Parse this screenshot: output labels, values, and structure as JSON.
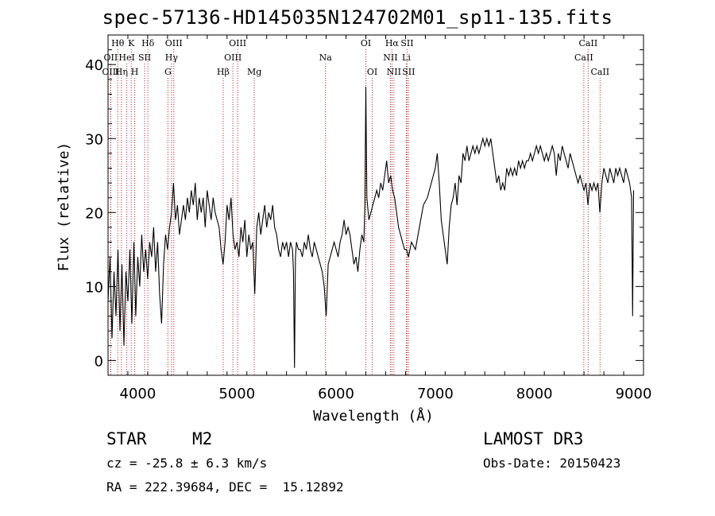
{
  "title": "spec-57136-HD145035N124702M01_sp11-135.fits",
  "footer": {
    "class_label": "STAR",
    "subclass": "M2",
    "survey": "LAMOST DR3",
    "cz": "cz = -25.8 ± 6.3 km/s",
    "obs_date": "Obs-Date: 20150423",
    "radec": "RA = 222.39684, DEC =  15.12892"
  },
  "chart_data": {
    "type": "line",
    "title": "spec-57136-HD145035N124702M01_sp11-135.fits",
    "xlabel": "Wavelength (Å)",
    "ylabel": "Flux (relative)",
    "xlim": [
      3700,
      9100
    ],
    "ylim": [
      -2,
      44
    ],
    "xticks": [
      4000,
      5000,
      6000,
      7000,
      8000,
      9000
    ],
    "yticks": [
      0,
      10,
      20,
      30,
      40
    ],
    "grid": false,
    "line_color": "#000000",
    "marker_color": "#b22222",
    "series": [
      {
        "values": [
          [
            3700,
            8
          ],
          [
            3720,
            14
          ],
          [
            3740,
            3
          ],
          [
            3760,
            12
          ],
          [
            3780,
            6
          ],
          [
            3800,
            15
          ],
          [
            3820,
            4
          ],
          [
            3840,
            13
          ],
          [
            3860,
            2
          ],
          [
            3880,
            12
          ],
          [
            3900,
            8
          ],
          [
            3920,
            15
          ],
          [
            3940,
            5
          ],
          [
            3960,
            16
          ],
          [
            3980,
            6
          ],
          [
            4000,
            14
          ],
          [
            4020,
            10
          ],
          [
            4040,
            17
          ],
          [
            4060,
            12
          ],
          [
            4080,
            15
          ],
          [
            4100,
            11
          ],
          [
            4120,
            16
          ],
          [
            4140,
            14
          ],
          [
            4160,
            18
          ],
          [
            4180,
            12
          ],
          [
            4200,
            16
          ],
          [
            4220,
            9
          ],
          [
            4240,
            5
          ],
          [
            4260,
            13
          ],
          [
            4280,
            17
          ],
          [
            4300,
            15
          ],
          [
            4320,
            18
          ],
          [
            4340,
            20
          ],
          [
            4360,
            24
          ],
          [
            4380,
            19
          ],
          [
            4400,
            21
          ],
          [
            4420,
            17
          ],
          [
            4440,
            19
          ],
          [
            4460,
            21
          ],
          [
            4480,
            19
          ],
          [
            4500,
            22
          ],
          [
            4520,
            20
          ],
          [
            4540,
            23
          ],
          [
            4560,
            21
          ],
          [
            4580,
            24
          ],
          [
            4600,
            19
          ],
          [
            4620,
            22
          ],
          [
            4640,
            20
          ],
          [
            4660,
            22
          ],
          [
            4680,
            18
          ],
          [
            4700,
            23
          ],
          [
            4720,
            21
          ],
          [
            4740,
            19
          ],
          [
            4760,
            22
          ],
          [
            4780,
            20
          ],
          [
            4800,
            19
          ],
          [
            4820,
            18
          ],
          [
            4840,
            15
          ],
          [
            4860,
            13
          ],
          [
            4880,
            16
          ],
          [
            4900,
            21
          ],
          [
            4920,
            19
          ],
          [
            4940,
            22
          ],
          [
            4960,
            17
          ],
          [
            4980,
            15
          ],
          [
            5000,
            16
          ],
          [
            5020,
            14
          ],
          [
            5040,
            18
          ],
          [
            5060,
            16
          ],
          [
            5080,
            19
          ],
          [
            5100,
            14
          ],
          [
            5120,
            17
          ],
          [
            5140,
            15
          ],
          [
            5160,
            16
          ],
          [
            5180,
            9
          ],
          [
            5200,
            18
          ],
          [
            5220,
            20
          ],
          [
            5240,
            17
          ],
          [
            5260,
            19
          ],
          [
            5280,
            21
          ],
          [
            5300,
            18
          ],
          [
            5320,
            20
          ],
          [
            5340,
            19
          ],
          [
            5360,
            21
          ],
          [
            5380,
            18
          ],
          [
            5400,
            17
          ],
          [
            5420,
            15
          ],
          [
            5440,
            14
          ],
          [
            5460,
            16
          ],
          [
            5480,
            15
          ],
          [
            5500,
            16
          ],
          [
            5520,
            14
          ],
          [
            5540,
            16
          ],
          [
            5560,
            15
          ],
          [
            5570,
            12
          ],
          [
            5580,
            -1
          ],
          [
            5590,
            14
          ],
          [
            5600,
            16
          ],
          [
            5620,
            15
          ],
          [
            5640,
            15
          ],
          [
            5660,
            14
          ],
          [
            5680,
            16
          ],
          [
            5700,
            15
          ],
          [
            5720,
            17
          ],
          [
            5740,
            15
          ],
          [
            5760,
            14
          ],
          [
            5780,
            16
          ],
          [
            5800,
            15
          ],
          [
            5820,
            14
          ],
          [
            5840,
            13
          ],
          [
            5860,
            12
          ],
          [
            5880,
            10
          ],
          [
            5900,
            6
          ],
          [
            5920,
            13
          ],
          [
            5940,
            14
          ],
          [
            5960,
            15
          ],
          [
            5980,
            16
          ],
          [
            6000,
            15
          ],
          [
            6020,
            14
          ],
          [
            6040,
            16
          ],
          [
            6060,
            17
          ],
          [
            6080,
            19
          ],
          [
            6100,
            17
          ],
          [
            6120,
            18
          ],
          [
            6140,
            17
          ],
          [
            6160,
            15
          ],
          [
            6180,
            13
          ],
          [
            6200,
            14
          ],
          [
            6220,
            12
          ],
          [
            6240,
            15
          ],
          [
            6260,
            17
          ],
          [
            6280,
            16
          ],
          [
            6290,
            21
          ],
          [
            6300,
            37
          ],
          [
            6310,
            22
          ],
          [
            6330,
            19
          ],
          [
            6350,
            20
          ],
          [
            6370,
            21
          ],
          [
            6390,
            22
          ],
          [
            6410,
            23
          ],
          [
            6430,
            22
          ],
          [
            6450,
            24
          ],
          [
            6470,
            23
          ],
          [
            6490,
            25
          ],
          [
            6510,
            27
          ],
          [
            6530,
            24
          ],
          [
            6550,
            25
          ],
          [
            6570,
            23
          ],
          [
            6590,
            22
          ],
          [
            6610,
            20
          ],
          [
            6630,
            18
          ],
          [
            6650,
            17
          ],
          [
            6670,
            16
          ],
          [
            6690,
            15
          ],
          [
            6710,
            15
          ],
          [
            6730,
            14
          ],
          [
            6760,
            16
          ],
          [
            6800,
            15
          ],
          [
            6840,
            18
          ],
          [
            6880,
            21
          ],
          [
            6920,
            22
          ],
          [
            6960,
            24
          ],
          [
            7000,
            26
          ],
          [
            7020,
            28
          ],
          [
            7040,
            24
          ],
          [
            7060,
            19
          ],
          [
            7080,
            17
          ],
          [
            7100,
            15
          ],
          [
            7120,
            13
          ],
          [
            7140,
            18
          ],
          [
            7160,
            21
          ],
          [
            7180,
            22
          ],
          [
            7200,
            24
          ],
          [
            7220,
            21
          ],
          [
            7240,
            25
          ],
          [
            7260,
            24
          ],
          [
            7280,
            28
          ],
          [
            7300,
            27
          ],
          [
            7320,
            29
          ],
          [
            7340,
            27
          ],
          [
            7360,
            28
          ],
          [
            7380,
            29
          ],
          [
            7400,
            28
          ],
          [
            7420,
            29
          ],
          [
            7440,
            28
          ],
          [
            7460,
            29
          ],
          [
            7480,
            30
          ],
          [
            7500,
            29
          ],
          [
            7520,
            30
          ],
          [
            7540,
            29
          ],
          [
            7560,
            30
          ],
          [
            7580,
            28
          ],
          [
            7600,
            26
          ],
          [
            7620,
            24
          ],
          [
            7640,
            25
          ],
          [
            7660,
            23
          ],
          [
            7680,
            24
          ],
          [
            7700,
            23
          ],
          [
            7720,
            26
          ],
          [
            7740,
            25
          ],
          [
            7760,
            26
          ],
          [
            7780,
            25
          ],
          [
            7800,
            26
          ],
          [
            7820,
            25
          ],
          [
            7840,
            27
          ],
          [
            7860,
            26
          ],
          [
            7880,
            27
          ],
          [
            7900,
            26
          ],
          [
            7920,
            27
          ],
          [
            7940,
            27
          ],
          [
            7960,
            28
          ],
          [
            7980,
            27
          ],
          [
            8000,
            28
          ],
          [
            8020,
            29
          ],
          [
            8040,
            28
          ],
          [
            8060,
            29
          ],
          [
            8080,
            28
          ],
          [
            8100,
            27
          ],
          [
            8120,
            28
          ],
          [
            8140,
            27
          ],
          [
            8160,
            28
          ],
          [
            8180,
            29
          ],
          [
            8200,
            28
          ],
          [
            8220,
            25
          ],
          [
            8240,
            28
          ],
          [
            8260,
            27
          ],
          [
            8280,
            29
          ],
          [
            8300,
            28
          ],
          [
            8320,
            27
          ],
          [
            8340,
            26
          ],
          [
            8360,
            28
          ],
          [
            8380,
            27
          ],
          [
            8400,
            26
          ],
          [
            8420,
            25
          ],
          [
            8440,
            24
          ],
          [
            8460,
            25
          ],
          [
            8480,
            24
          ],
          [
            8500,
            23
          ],
          [
            8520,
            24
          ],
          [
            8540,
            21
          ],
          [
            8560,
            24
          ],
          [
            8580,
            23
          ],
          [
            8600,
            24
          ],
          [
            8620,
            23
          ],
          [
            8640,
            24
          ],
          [
            8660,
            20
          ],
          [
            8680,
            24
          ],
          [
            8700,
            26
          ],
          [
            8720,
            25
          ],
          [
            8740,
            24
          ],
          [
            8760,
            26
          ],
          [
            8780,
            25
          ],
          [
            8800,
            24
          ],
          [
            8820,
            26
          ],
          [
            8840,
            25
          ],
          [
            8860,
            26
          ],
          [
            8880,
            25
          ],
          [
            8900,
            24
          ],
          [
            8920,
            26
          ],
          [
            8940,
            25
          ],
          [
            8960,
            24
          ],
          [
            8980,
            22
          ],
          [
            8990,
            6
          ],
          [
            9000,
            23
          ]
        ]
      }
    ],
    "lines": [
      {
        "wave": 3798,
        "label": "Hθ",
        "row": 1
      },
      {
        "wave": 3727,
        "label": "OII",
        "row": 2
      },
      {
        "wave": 3727,
        "label": "OIII",
        "row": 3
      },
      {
        "wave": 3835,
        "label": "Hη",
        "row": 3
      },
      {
        "wave": 3889,
        "label": "HeI",
        "row": 2
      },
      {
        "wave": 3934,
        "label": "K",
        "row": 1
      },
      {
        "wave": 3969,
        "label": "H",
        "row": 3
      },
      {
        "wave": 4069,
        "label": "SII",
        "row": 2
      },
      {
        "wave": 4102,
        "label": "Hδ",
        "row": 1
      },
      {
        "wave": 4304,
        "label": "G",
        "row": 3
      },
      {
        "wave": 4340,
        "label": "Hγ",
        "row": 2
      },
      {
        "wave": 4363,
        "label": "OIII",
        "row": 1
      },
      {
        "wave": 4861,
        "label": "Hβ",
        "row": 3
      },
      {
        "wave": 4959,
        "label": "OIII",
        "row": 2
      },
      {
        "wave": 5007,
        "label": "OIII",
        "row": 1
      },
      {
        "wave": 5175,
        "label": "Mg",
        "row": 3
      },
      {
        "wave": 5893,
        "label": "Na",
        "row": 2
      },
      {
        "wave": 6300,
        "label": "OI",
        "row": 1
      },
      {
        "wave": 6364,
        "label": "OI",
        "row": 3
      },
      {
        "wave": 6548,
        "label": "NII",
        "row": 2
      },
      {
        "wave": 6563,
        "label": "Hα",
        "row": 1
      },
      {
        "wave": 6583,
        "label": "NII",
        "row": 3
      },
      {
        "wave": 6708,
        "label": "Li",
        "row": 2
      },
      {
        "wave": 6716,
        "label": "SII",
        "row": 1
      },
      {
        "wave": 6731,
        "label": "SII",
        "row": 3
      },
      {
        "wave": 8498,
        "label": "CaII",
        "row": 2
      },
      {
        "wave": 8542,
        "label": "CaII",
        "row": 1
      },
      {
        "wave": 8662,
        "label": "CaII",
        "row": 3
      }
    ]
  }
}
